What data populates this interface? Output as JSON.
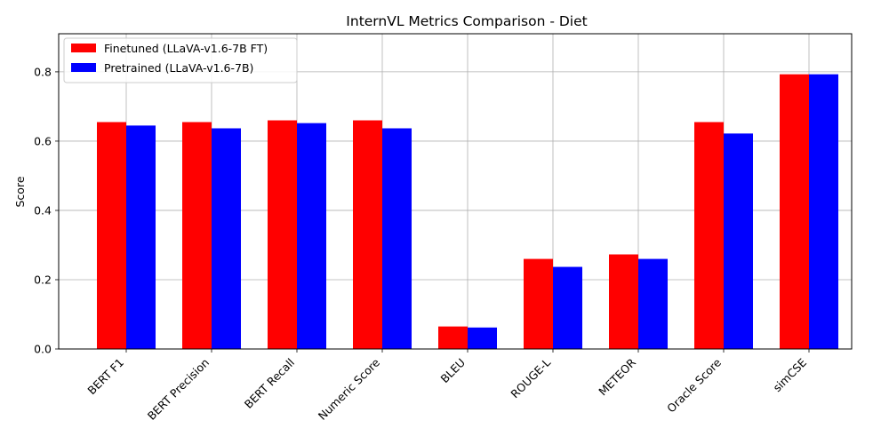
{
  "chart_data": {
    "type": "bar",
    "title": "InternVL Metrics Comparison - Diet",
    "xlabel": "",
    "ylabel": "Score",
    "ylim": [
      0,
      0.91
    ],
    "yticks": [
      "0.0",
      "0.2",
      "0.4",
      "0.6",
      "0.8"
    ],
    "yticks_values": [
      0,
      0.2,
      0.4,
      0.6,
      0.8
    ],
    "grid": true,
    "legend_position": "top-left",
    "categories": [
      "BERT F1",
      "BERT Precision",
      "BERT Recall",
      "Numeric Score",
      "BLEU",
      "ROUGE-L",
      "METEOR",
      "Oracle Score",
      "simCSE"
    ],
    "series": [
      {
        "name": "Finetuned (LLaVA-v1.6-7B FT)",
        "color": "#ff0000",
        "values": [
          0.655,
          0.655,
          0.66,
          0.66,
          0.065,
          0.26,
          0.273,
          0.655,
          0.793
        ]
      },
      {
        "name": "Pretrained (LLaVA-v1.6-7B)",
        "color": "#0000ff",
        "values": [
          0.645,
          0.637,
          0.652,
          0.637,
          0.062,
          0.237,
          0.26,
          0.622,
          0.793
        ]
      }
    ]
  }
}
